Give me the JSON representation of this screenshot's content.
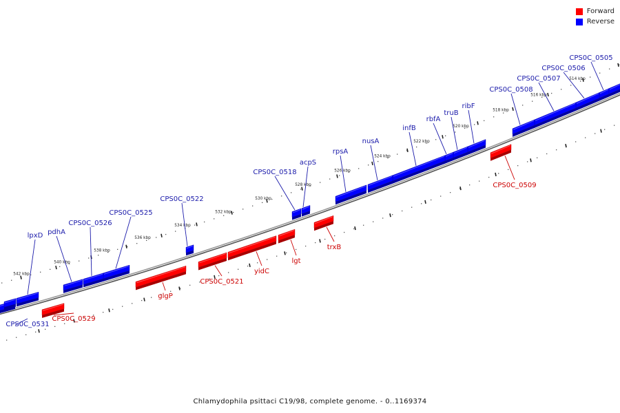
{
  "legend": {
    "forward_label": "Forward",
    "reverse_label": "Reverse",
    "forward_color": "#ff0000",
    "reverse_color": "#0000ff"
  },
  "caption": "Chlamydophila psittaci C19/98, complete genome. - 0..1169374",
  "colors": {
    "forward": "#ff0000",
    "forward_shade": "#a80000",
    "reverse": "#0000ff",
    "reverse_shade": "#0000a0",
    "forward_label": "#cc0000",
    "reverse_label": "#1a1aaa",
    "axis": "#777777"
  },
  "ticks": [
    {
      "label": "514 kbp"
    },
    {
      "label": "516 kbp"
    },
    {
      "label": "518 kbp"
    },
    {
      "label": "520 kbp"
    },
    {
      "label": "522 kbp"
    },
    {
      "label": "524 kbp"
    },
    {
      "label": "526 kbp"
    },
    {
      "label": "528 kbp"
    },
    {
      "label": "530 kbp"
    },
    {
      "label": "532 kbp"
    },
    {
      "label": "534 kbp"
    },
    {
      "label": "536 kbp"
    },
    {
      "label": "538 kbp"
    },
    {
      "label": "540 kbp"
    },
    {
      "label": "542 kbp"
    }
  ],
  "reverse_genes": [
    {
      "name": "CPS0C_0505"
    },
    {
      "name": "CPS0C_0506"
    },
    {
      "name": "CPS0C_0507"
    },
    {
      "name": "CPS0C_0508"
    },
    {
      "name": "ribF"
    },
    {
      "name": "truB"
    },
    {
      "name": "rbfA"
    },
    {
      "name": "infB"
    },
    {
      "name": "nusA"
    },
    {
      "name": "rpsA"
    },
    {
      "name": "acpS"
    },
    {
      "name": "CPS0C_0518"
    },
    {
      "name": "CPS0C_0522"
    },
    {
      "name": "CPS0C_0525"
    },
    {
      "name": "CPS0C_0526"
    },
    {
      "name": "pdhA"
    },
    {
      "name": "lpxD"
    },
    {
      "name": "CPS0C_0531"
    }
  ],
  "forward_genes": [
    {
      "name": "CPS0C_0509"
    },
    {
      "name": "trxB"
    },
    {
      "name": "lgt"
    },
    {
      "name": "yidC"
    },
    {
      "name": "CPS0C_0521"
    },
    {
      "name": "glgP"
    },
    {
      "name": "CPS0C_0529"
    }
  ]
}
